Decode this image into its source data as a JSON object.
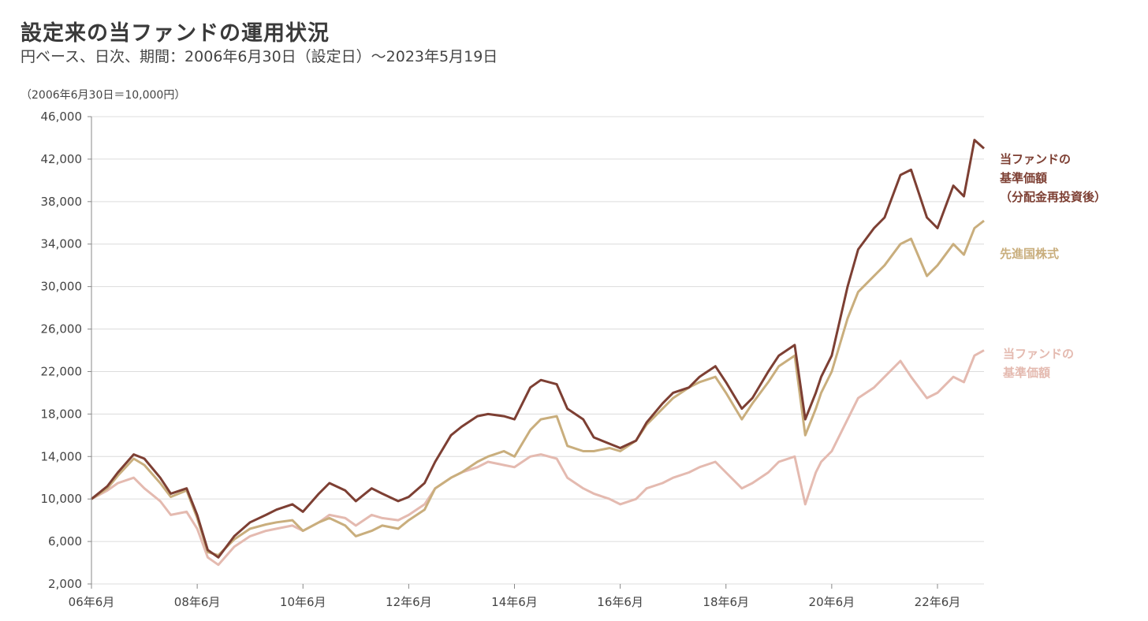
{
  "header": {
    "title": "設定来の当ファンドの運用状況",
    "subtitle": "円ベース、日次、期間：2006年6月30日（設定日）～2023年5月19日",
    "unit_note": "（2006年6月30日＝10,000円）"
  },
  "legend": {
    "fund_reinvested": "当ファンドの\n基準価額\n（分配金再投資後）",
    "developed_equity": "先進国株式",
    "fund_nav": "当ファンドの\n基準価額"
  },
  "chart_data": {
    "type": "line",
    "title": "設定来の当ファンドの運用状況",
    "xlabel": "",
    "ylabel": "（2006年6月30日＝10,000円）",
    "ylim": [
      2000,
      46000
    ],
    "xlim": [
      2006.5,
      2023.38
    ],
    "y_ticks": [
      2000,
      6000,
      10000,
      14000,
      18000,
      22000,
      26000,
      30000,
      34000,
      38000,
      42000,
      46000
    ],
    "y_tick_labels": [
      "2,000",
      "6,000",
      "10,000",
      "14,000",
      "18,000",
      "22,000",
      "26,000",
      "30,000",
      "34,000",
      "38,000",
      "42,000",
      "46,000"
    ],
    "x_ticks": [
      2006.5,
      2008.5,
      2010.5,
      2012.5,
      2014.5,
      2016.5,
      2018.5,
      2020.5,
      2022.5
    ],
    "x_tick_labels": [
      "06年6月",
      "08年6月",
      "10年6月",
      "12年6月",
      "14年6月",
      "16年6月",
      "18年6月",
      "20年6月",
      "22年6月"
    ],
    "grid": "horizontal",
    "legend_position": "right",
    "series": [
      {
        "name": "当ファンドの基準価額（分配金再投資後）",
        "color": "#7d3f33",
        "x": [
          2006.5,
          2006.8,
          2007.0,
          2007.3,
          2007.5,
          2007.8,
          2008.0,
          2008.3,
          2008.5,
          2008.7,
          2008.9,
          2009.2,
          2009.5,
          2009.8,
          2010.0,
          2010.3,
          2010.5,
          2010.8,
          2011.0,
          2011.3,
          2011.5,
          2011.8,
          2012.0,
          2012.3,
          2012.5,
          2012.8,
          2013.0,
          2013.3,
          2013.5,
          2013.8,
          2014.0,
          2014.3,
          2014.5,
          2014.8,
          2015.0,
          2015.3,
          2015.5,
          2015.8,
          2016.0,
          2016.3,
          2016.5,
          2016.8,
          2017.0,
          2017.3,
          2017.5,
          2017.8,
          2018.0,
          2018.3,
          2018.5,
          2018.8,
          2019.0,
          2019.3,
          2019.5,
          2019.8,
          2020.0,
          2020.2,
          2020.3,
          2020.5,
          2020.8,
          2021.0,
          2021.3,
          2021.5,
          2021.8,
          2022.0,
          2022.3,
          2022.5,
          2022.8,
          2023.0,
          2023.2,
          2023.38
        ],
        "values": [
          10000,
          11200,
          12500,
          14200,
          13800,
          12000,
          10500,
          11000,
          8500,
          5200,
          4500,
          6500,
          7800,
          8500,
          9000,
          9500,
          8800,
          10500,
          11500,
          10800,
          9800,
          11000,
          10500,
          9800,
          10200,
          11500,
          13500,
          16000,
          16800,
          17800,
          18000,
          17800,
          17500,
          20500,
          21200,
          20800,
          18500,
          17500,
          15800,
          15200,
          14800,
          15500,
          17200,
          19000,
          20000,
          20500,
          21500,
          22500,
          21000,
          18500,
          19500,
          22000,
          23500,
          24500,
          17500,
          20000,
          21500,
          23500,
          30000,
          33500,
          35500,
          36500,
          40500,
          41000,
          36500,
          35500,
          39500,
          38500,
          43800,
          43000
        ]
      },
      {
        "name": "先進国株式",
        "color": "#c9ae7d",
        "x": [
          2006.5,
          2006.8,
          2007.0,
          2007.3,
          2007.5,
          2007.8,
          2008.0,
          2008.3,
          2008.5,
          2008.7,
          2008.9,
          2009.2,
          2009.5,
          2009.8,
          2010.0,
          2010.3,
          2010.5,
          2010.8,
          2011.0,
          2011.3,
          2011.5,
          2011.8,
          2012.0,
          2012.3,
          2012.5,
          2012.8,
          2013.0,
          2013.3,
          2013.5,
          2013.8,
          2014.0,
          2014.3,
          2014.5,
          2014.8,
          2015.0,
          2015.3,
          2015.5,
          2015.8,
          2016.0,
          2016.3,
          2016.5,
          2016.8,
          2017.0,
          2017.3,
          2017.5,
          2017.8,
          2018.0,
          2018.3,
          2018.5,
          2018.8,
          2019.0,
          2019.3,
          2019.5,
          2019.8,
          2020.0,
          2020.2,
          2020.3,
          2020.5,
          2020.8,
          2021.0,
          2021.3,
          2021.5,
          2021.8,
          2022.0,
          2022.3,
          2022.5,
          2022.8,
          2023.0,
          2023.2,
          2023.38
        ],
        "values": [
          10000,
          11000,
          12200,
          13800,
          13200,
          11500,
          10200,
          10800,
          8200,
          5000,
          4700,
          6200,
          7200,
          7600,
          7800,
          8000,
          7000,
          7800,
          8200,
          7500,
          6500,
          7000,
          7500,
          7200,
          8000,
          9000,
          11000,
          12000,
          12500,
          13500,
          14000,
          14500,
          14000,
          16500,
          17500,
          17800,
          15000,
          14500,
          14500,
          14800,
          14500,
          15500,
          17000,
          18500,
          19500,
          20500,
          21000,
          21500,
          20000,
          17500,
          19000,
          21000,
          22500,
          23500,
          16000,
          18500,
          20000,
          22000,
          27000,
          29500,
          31000,
          32000,
          34000,
          34500,
          31000,
          32000,
          34000,
          33000,
          35500,
          36200
        ]
      },
      {
        "name": "当ファンドの基準価額",
        "color": "#e4bab0",
        "x": [
          2006.5,
          2006.8,
          2007.0,
          2007.3,
          2007.5,
          2007.8,
          2008.0,
          2008.3,
          2008.5,
          2008.7,
          2008.9,
          2009.2,
          2009.5,
          2009.8,
          2010.0,
          2010.3,
          2010.5,
          2010.8,
          2011.0,
          2011.3,
          2011.5,
          2011.8,
          2012.0,
          2012.3,
          2012.5,
          2012.8,
          2013.0,
          2013.3,
          2013.5,
          2013.8,
          2014.0,
          2014.3,
          2014.5,
          2014.8,
          2015.0,
          2015.3,
          2015.5,
          2015.8,
          2016.0,
          2016.3,
          2016.5,
          2016.8,
          2017.0,
          2017.3,
          2017.5,
          2017.8,
          2018.0,
          2018.3,
          2018.5,
          2018.8,
          2019.0,
          2019.3,
          2019.5,
          2019.8,
          2020.0,
          2020.2,
          2020.3,
          2020.5,
          2020.8,
          2021.0,
          2021.3,
          2021.5,
          2021.8,
          2022.0,
          2022.3,
          2022.5,
          2022.8,
          2023.0,
          2023.2,
          2023.38
        ],
        "values": [
          10000,
          10800,
          11500,
          12000,
          11000,
          9800,
          8500,
          8800,
          7200,
          4500,
          3800,
          5500,
          6500,
          7000,
          7200,
          7500,
          7000,
          7800,
          8500,
          8200,
          7500,
          8500,
          8200,
          8000,
          8500,
          9500,
          11000,
          12000,
          12500,
          13000,
          13500,
          13200,
          13000,
          14000,
          14200,
          13800,
          12000,
          11000,
          10500,
          10000,
          9500,
          10000,
          11000,
          11500,
          12000,
          12500,
          13000,
          13500,
          12500,
          11000,
          11500,
          12500,
          13500,
          14000,
          9500,
          12500,
          13500,
          14500,
          17500,
          19500,
          20500,
          21500,
          23000,
          21500,
          19500,
          20000,
          21500,
          21000,
          23500,
          24000
        ]
      }
    ]
  }
}
